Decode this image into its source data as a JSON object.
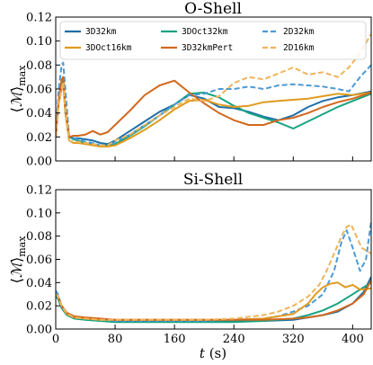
{
  "chart_data": [
    {
      "type": "line",
      "title": "O-Shell",
      "ylabel": "⟨M⟩max",
      "xlabel": "",
      "xlim": [
        0,
        425
      ],
      "ylim": [
        0,
        0.12
      ],
      "yticks": [
        "0.00",
        "0.02",
        "0.04",
        "0.06",
        "0.08",
        "0.10",
        "0.12"
      ],
      "xticks": [
        "0",
        "80",
        "160",
        "240",
        "320",
        "400"
      ],
      "grid": false,
      "legend": "top, 3 columns",
      "series": [
        {
          "name": "3D32km",
          "color": "#1f6fa8",
          "dash": "solid",
          "x": [
            0,
            4,
            8,
            10,
            13,
            18,
            24,
            30,
            40,
            50,
            60,
            70,
            80,
            100,
            120,
            140,
            160,
            180,
            200,
            220,
            240,
            260,
            280,
            300,
            320,
            340,
            360,
            380,
            400,
            425
          ],
          "y": [
            0.02,
            0.05,
            0.065,
            0.07,
            0.04,
            0.02,
            0.019,
            0.019,
            0.018,
            0.017,
            0.015,
            0.014,
            0.017,
            0.025,
            0.033,
            0.041,
            0.047,
            0.055,
            0.052,
            0.045,
            0.044,
            0.041,
            0.037,
            0.034,
            0.038,
            0.045,
            0.05,
            0.053,
            0.055,
            0.058
          ]
        },
        {
          "name": "3DOct32km",
          "color": "#17a382",
          "dash": "solid",
          "x": [
            0,
            4,
            8,
            10,
            13,
            18,
            24,
            30,
            40,
            50,
            60,
            70,
            80,
            100,
            120,
            140,
            160,
            180,
            200,
            220,
            240,
            260,
            280,
            300,
            320,
            340,
            360,
            380,
            400,
            425
          ],
          "y": [
            0.02,
            0.05,
            0.062,
            0.068,
            0.045,
            0.02,
            0.018,
            0.017,
            0.015,
            0.014,
            0.013,
            0.013,
            0.014,
            0.021,
            0.029,
            0.038,
            0.047,
            0.056,
            0.057,
            0.053,
            0.046,
            0.04,
            0.036,
            0.032,
            0.027,
            0.033,
            0.039,
            0.045,
            0.05,
            0.056
          ]
        },
        {
          "name": "2D32km",
          "color": "#4a9bd6",
          "dash": "dashed",
          "x": [
            0,
            4,
            8,
            10,
            13,
            18,
            24,
            30,
            40,
            50,
            60,
            70,
            80,
            100,
            120,
            140,
            160,
            180,
            200,
            220,
            240,
            260,
            280,
            300,
            320,
            340,
            360,
            380,
            395,
            410,
            425
          ],
          "y": [
            0.02,
            0.06,
            0.08,
            0.082,
            0.06,
            0.02,
            0.019,
            0.018,
            0.016,
            0.015,
            0.013,
            0.012,
            0.016,
            0.022,
            0.03,
            0.038,
            0.047,
            0.055,
            0.056,
            0.06,
            0.06,
            0.062,
            0.06,
            0.063,
            0.064,
            0.063,
            0.062,
            0.06,
            0.058,
            0.07,
            0.08
          ]
        },
        {
          "name": "3DOct16km",
          "color": "#e09a1f",
          "dash": "solid",
          "x": [
            0,
            4,
            8,
            10,
            13,
            18,
            24,
            30,
            40,
            50,
            60,
            70,
            80,
            100,
            120,
            140,
            160,
            180,
            200,
            220,
            240,
            260,
            280,
            300,
            320,
            340,
            360,
            380,
            400,
            425
          ],
          "y": [
            0.02,
            0.048,
            0.06,
            0.065,
            0.04,
            0.017,
            0.015,
            0.015,
            0.014,
            0.013,
            0.012,
            0.012,
            0.013,
            0.019,
            0.026,
            0.034,
            0.043,
            0.05,
            0.051,
            0.047,
            0.045,
            0.046,
            0.049,
            0.05,
            0.051,
            0.052,
            0.054,
            0.056,
            0.055,
            0.057
          ]
        },
        {
          "name": "3D32kmPert",
          "color": "#d2691e",
          "dash": "solid",
          "x": [
            0,
            4,
            8,
            10,
            13,
            18,
            24,
            30,
            40,
            50,
            60,
            70,
            80,
            100,
            120,
            140,
            160,
            180,
            200,
            220,
            240,
            260,
            280,
            300,
            320,
            340,
            360,
            380,
            400,
            425
          ],
          "y": [
            0.02,
            0.05,
            0.068,
            0.07,
            0.045,
            0.02,
            0.021,
            0.021,
            0.022,
            0.025,
            0.022,
            0.024,
            0.03,
            0.042,
            0.055,
            0.063,
            0.067,
            0.057,
            0.048,
            0.04,
            0.034,
            0.03,
            0.03,
            0.034,
            0.036,
            0.04,
            0.045,
            0.049,
            0.052,
            0.057
          ]
        },
        {
          "name": "2D16km",
          "color": "#efb45a",
          "dash": "dashed",
          "x": [
            0,
            4,
            8,
            10,
            13,
            18,
            24,
            30,
            40,
            50,
            60,
            70,
            80,
            100,
            120,
            140,
            160,
            180,
            200,
            220,
            240,
            260,
            280,
            300,
            320,
            340,
            360,
            380,
            395,
            410,
            425
          ],
          "y": [
            0.02,
            0.05,
            0.06,
            0.066,
            0.045,
            0.017,
            0.016,
            0.016,
            0.015,
            0.014,
            0.013,
            0.013,
            0.017,
            0.022,
            0.03,
            0.038,
            0.045,
            0.052,
            0.05,
            0.054,
            0.065,
            0.07,
            0.068,
            0.073,
            0.078,
            0.072,
            0.074,
            0.07,
            0.078,
            0.09,
            0.106
          ]
        }
      ]
    },
    {
      "type": "line",
      "title": "Si-Shell",
      "ylabel": "⟨M⟩max",
      "xlabel": "t (s)",
      "xlim": [
        0,
        425
      ],
      "ylim": [
        0,
        0.12
      ],
      "yticks": [
        "0.00",
        "0.02",
        "0.04",
        "0.06",
        "0.08",
        "0.10",
        "0.12"
      ],
      "xticks": [
        "0",
        "80",
        "160",
        "240",
        "320",
        "400"
      ],
      "grid": false,
      "series": [
        {
          "name": "3D32km",
          "color": "#1f6fa8",
          "dash": "solid",
          "x": [
            0,
            3,
            8,
            15,
            25,
            40,
            60,
            80,
            120,
            160,
            200,
            240,
            280,
            320,
            340,
            360,
            380,
            400,
            415,
            425
          ],
          "y": [
            0.03,
            0.028,
            0.02,
            0.013,
            0.01,
            0.009,
            0.008,
            0.007,
            0.007,
            0.007,
            0.007,
            0.007,
            0.007,
            0.008,
            0.01,
            0.012,
            0.015,
            0.022,
            0.032,
            0.045
          ]
        },
        {
          "name": "3DOct32km",
          "color": "#17a382",
          "dash": "solid",
          "x": [
            0,
            3,
            8,
            15,
            25,
            40,
            60,
            80,
            120,
            160,
            200,
            240,
            280,
            320,
            340,
            360,
            380,
            400,
            415,
            425
          ],
          "y": [
            0.028,
            0.026,
            0.018,
            0.012,
            0.009,
            0.008,
            0.007,
            0.006,
            0.006,
            0.006,
            0.006,
            0.006,
            0.007,
            0.009,
            0.012,
            0.016,
            0.022,
            0.03,
            0.036,
            0.04
          ]
        },
        {
          "name": "2D32km",
          "color": "#4a9bd6",
          "dash": "dashed",
          "x": [
            0,
            3,
            8,
            15,
            25,
            40,
            60,
            80,
            120,
            160,
            200,
            240,
            280,
            300,
            320,
            340,
            360,
            375,
            385,
            392,
            400,
            410,
            418,
            425
          ],
          "y": [
            0.033,
            0.03,
            0.02,
            0.013,
            0.01,
            0.009,
            0.008,
            0.007,
            0.007,
            0.007,
            0.007,
            0.008,
            0.009,
            0.011,
            0.015,
            0.02,
            0.03,
            0.05,
            0.075,
            0.085,
            0.07,
            0.05,
            0.06,
            0.093
          ]
        },
        {
          "name": "3DOct16km",
          "color": "#e09a1f",
          "dash": "solid",
          "x": [
            0,
            3,
            8,
            15,
            25,
            40,
            60,
            80,
            120,
            160,
            200,
            240,
            280,
            320,
            340,
            350,
            360,
            370,
            380,
            390,
            400,
            410,
            425
          ],
          "y": [
            0.03,
            0.028,
            0.02,
            0.013,
            0.01,
            0.009,
            0.008,
            0.008,
            0.008,
            0.008,
            0.008,
            0.008,
            0.009,
            0.013,
            0.022,
            0.03,
            0.036,
            0.039,
            0.04,
            0.036,
            0.038,
            0.034,
            0.035
          ]
        },
        {
          "name": "3D32kmPert",
          "color": "#d2691e",
          "dash": "solid",
          "x": [
            0,
            3,
            8,
            15,
            25,
            40,
            60,
            80,
            120,
            160,
            200,
            240,
            280,
            320,
            340,
            360,
            380,
            400,
            415,
            425
          ],
          "y": [
            0.03,
            0.028,
            0.02,
            0.014,
            0.011,
            0.01,
            0.009,
            0.008,
            0.008,
            0.008,
            0.008,
            0.008,
            0.008,
            0.009,
            0.01,
            0.012,
            0.016,
            0.022,
            0.03,
            0.042
          ]
        },
        {
          "name": "2D16km",
          "color": "#efb45a",
          "dash": "dashed",
          "x": [
            0,
            3,
            8,
            15,
            25,
            40,
            60,
            80,
            120,
            160,
            200,
            240,
            280,
            300,
            320,
            340,
            355,
            365,
            375,
            385,
            392,
            398,
            405,
            412,
            425
          ],
          "y": [
            0.03,
            0.028,
            0.02,
            0.013,
            0.01,
            0.009,
            0.008,
            0.008,
            0.008,
            0.008,
            0.008,
            0.009,
            0.012,
            0.015,
            0.02,
            0.028,
            0.038,
            0.05,
            0.065,
            0.08,
            0.088,
            0.09,
            0.08,
            0.07,
            0.065
          ]
        }
      ]
    }
  ]
}
